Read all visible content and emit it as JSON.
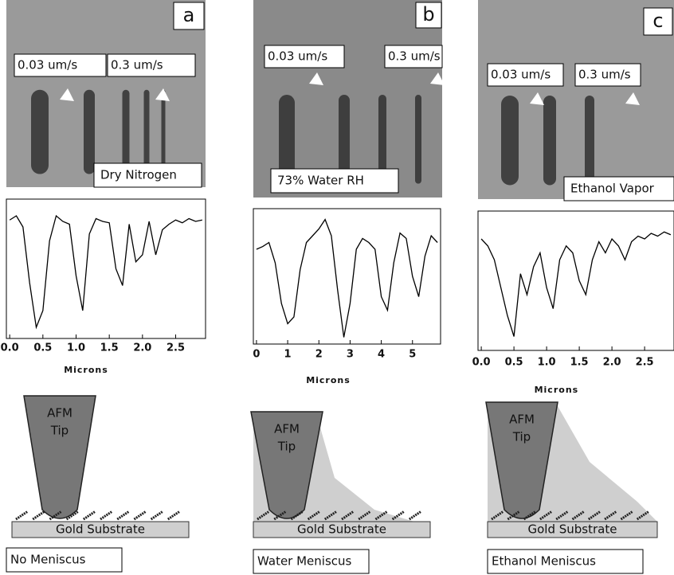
{
  "panels": [
    {
      "label": "a",
      "speed_labels": [
        "0.03 um/s",
        "0.3 um/s"
      ],
      "condition": "Dry Nitrogen",
      "chart": {
        "type": "line",
        "x": [
          0,
          0.1,
          0.2,
          0.3,
          0.4,
          0.5,
          0.6,
          0.7,
          0.8,
          0.9,
          1.0,
          1.1,
          1.2,
          1.3,
          1.4,
          1.5,
          1.6,
          1.7,
          1.8,
          1.9,
          2.0,
          2.1,
          2.2,
          2.3,
          2.4,
          2.5,
          2.6,
          2.7,
          2.8,
          2.9
        ],
        "values": [
          85,
          88,
          80,
          40,
          8,
          20,
          70,
          88,
          84,
          82,
          45,
          20,
          75,
          86,
          84,
          83,
          50,
          38,
          82,
          55,
          60,
          84,
          60,
          78,
          82,
          85,
          83,
          86,
          84,
          85
        ],
        "xlim": [
          -0.05,
          2.95
        ],
        "ylim": [
          0,
          100
        ],
        "xticks": [
          {
            "value": 0,
            "label": "0.0"
          },
          {
            "value": 0.5,
            "label": "0.5"
          },
          {
            "value": 1,
            "label": "1.0"
          },
          {
            "value": 1.5,
            "label": "1.5"
          },
          {
            "value": 2,
            "label": "2.0"
          },
          {
            "value": 2.5,
            "label": "2.5"
          }
        ],
        "xlabel": "Microns"
      },
      "diagram": {
        "tip": [
          "AFM",
          "Tip"
        ],
        "substrate": "Gold Substrate",
        "meniscus": "No Meniscus"
      }
    },
    {
      "label": "b",
      "speed_labels": [
        "0.03 um/s",
        "0.3 um/s"
      ],
      "condition": "73% Water RH",
      "chart": {
        "type": "line",
        "x": [
          0,
          0.2,
          0.4,
          0.6,
          0.8,
          1.0,
          1.2,
          1.4,
          1.6,
          1.8,
          2.0,
          2.2,
          2.4,
          2.6,
          2.8,
          3.0,
          3.2,
          3.4,
          3.6,
          3.8,
          4.0,
          4.2,
          4.4,
          4.6,
          4.8,
          5.0,
          5.2,
          5.4,
          5.6,
          5.8
        ],
        "values": [
          70,
          72,
          75,
          60,
          30,
          15,
          20,
          55,
          75,
          80,
          85,
          92,
          80,
          40,
          5,
          30,
          70,
          78,
          75,
          70,
          35,
          25,
          60,
          82,
          78,
          50,
          35,
          65,
          80,
          75
        ],
        "xlim": [
          -0.1,
          5.9
        ],
        "ylim": [
          0,
          100
        ],
        "xticks": [
          0,
          1,
          2,
          3,
          4,
          5
        ],
        "xlabel": "Microns"
      },
      "diagram": {
        "tip": [
          "AFM",
          "Tip"
        ],
        "substrate": "Gold Substrate",
        "meniscus": "Water Meniscus"
      }
    },
    {
      "label": "c",
      "speed_labels": [
        "0.03 um/s",
        "0.3 um/s"
      ],
      "condition": "Ethanol Vapor",
      "chart": {
        "type": "line",
        "x": [
          0,
          0.1,
          0.2,
          0.3,
          0.4,
          0.5,
          0.6,
          0.7,
          0.8,
          0.9,
          1.0,
          1.1,
          1.2,
          1.3,
          1.4,
          1.5,
          1.6,
          1.7,
          1.8,
          1.9,
          2.0,
          2.1,
          2.2,
          2.3,
          2.4,
          2.5,
          2.6,
          2.7,
          2.8,
          2.9
        ],
        "values": [
          80,
          75,
          65,
          45,
          25,
          10,
          55,
          40,
          60,
          70,
          45,
          30,
          65,
          75,
          70,
          50,
          40,
          65,
          78,
          70,
          80,
          75,
          65,
          78,
          82,
          80,
          84,
          82,
          85,
          83
        ],
        "xlim": [
          -0.05,
          2.95
        ],
        "ylim": [
          0,
          100
        ],
        "xticks": [
          {
            "value": 0,
            "label": "0.0"
          },
          {
            "value": 0.5,
            "label": "0.5"
          },
          {
            "value": 1,
            "label": "1.0"
          },
          {
            "value": 1.5,
            "label": "1.5"
          },
          {
            "value": 2,
            "label": "2.0"
          },
          {
            "value": 2.5,
            "label": "2.5"
          }
        ],
        "xlabel": "Microns"
      },
      "diagram": {
        "tip": [
          "AFM",
          "Tip"
        ],
        "substrate": "Gold Substrate",
        "meniscus": "Ethanol Meniscus"
      }
    }
  ]
}
